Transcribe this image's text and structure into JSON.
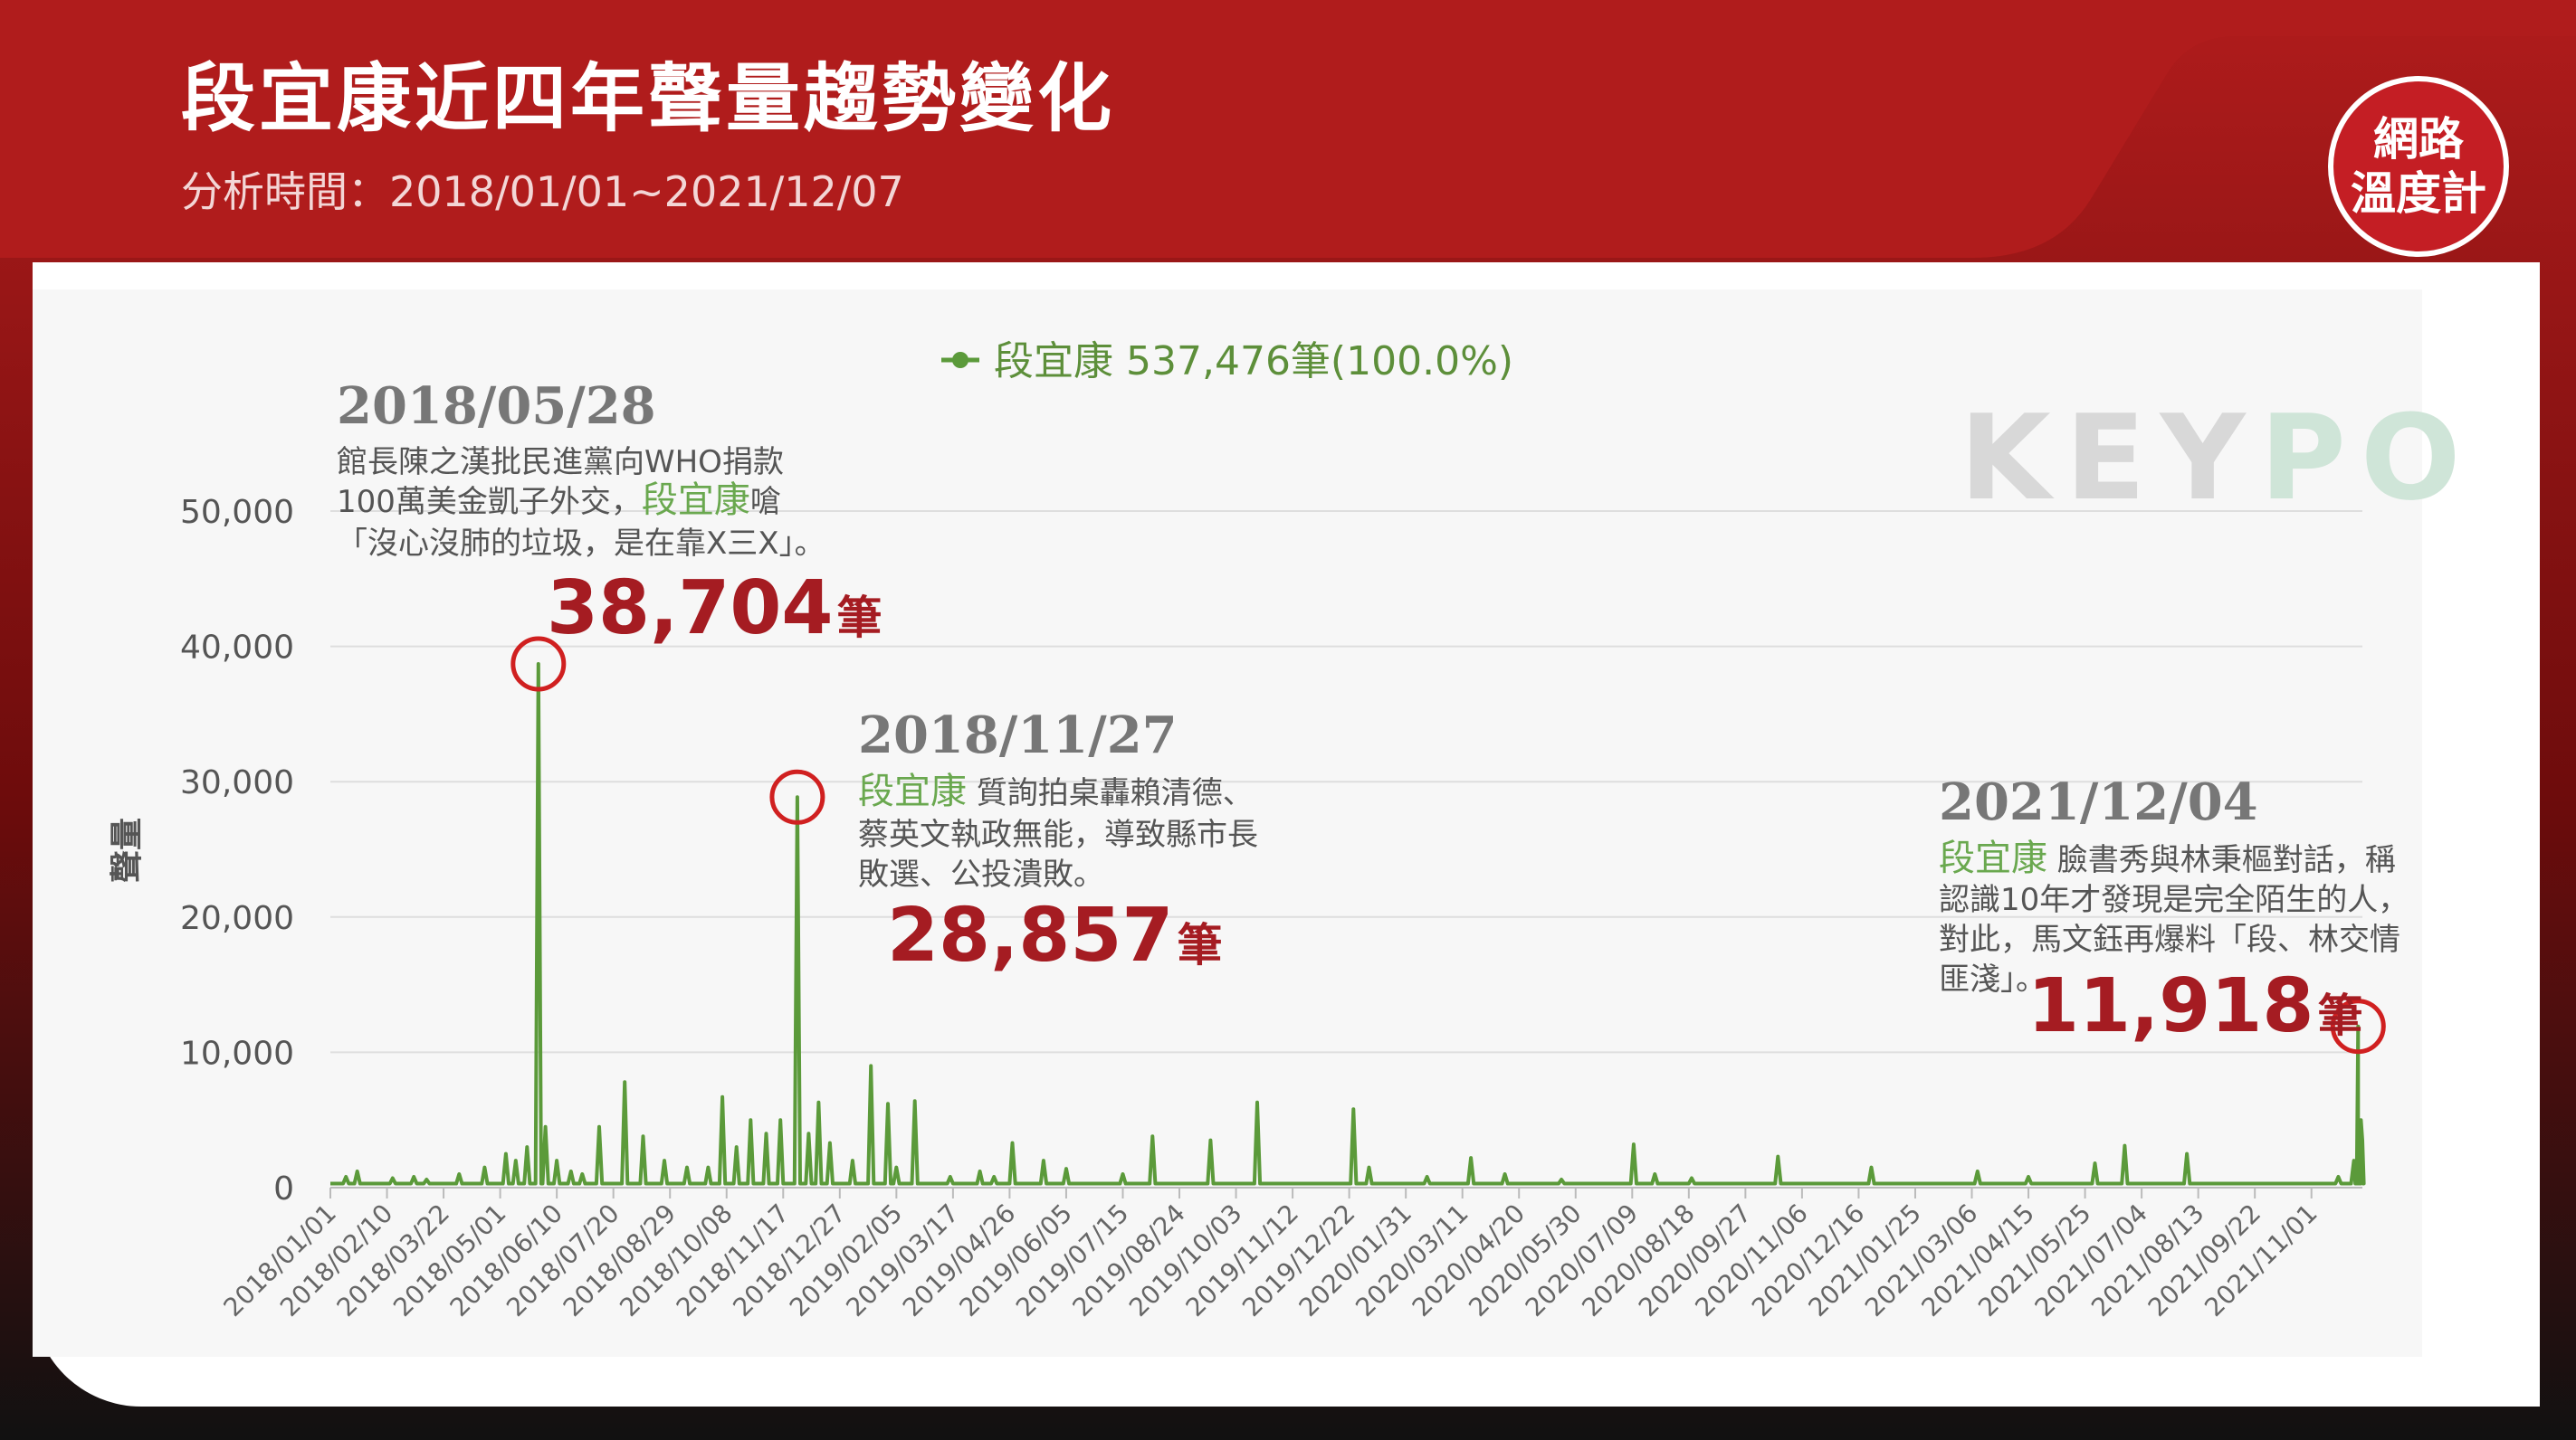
{
  "header": {
    "title": "段宜康近四年聲量趨勢變化",
    "subtitle": "分析時間：2018/01/01~2021/12/07",
    "logo_line1": "網路",
    "logo_line2": "溫度計"
  },
  "watermark": {
    "left": "KEY",
    "right": "PO"
  },
  "colors": {
    "header": "#b01c1c",
    "line": "#5b9a3a",
    "highlight": "#a51c22",
    "accent_green": "#6aa84f"
  },
  "chart_data": {
    "type": "line",
    "ylabel": "聲量",
    "ylim": [
      0,
      50000
    ],
    "y_ticks": [
      0,
      10000,
      20000,
      30000,
      40000,
      50000
    ],
    "y_tick_labels": [
      "0",
      "10,000",
      "20,000",
      "30,000",
      "40,000",
      "50,000"
    ],
    "x_range": [
      "2018-01-01",
      "2021-12-07"
    ],
    "x_tick_labels": [
      "2018/01/01",
      "2018/02/10",
      "2018/03/22",
      "2018/05/01",
      "2018/06/10",
      "2018/07/20",
      "2018/08/29",
      "2018/10/08",
      "2018/11/17",
      "2018/12/27",
      "2019/02/05",
      "2019/03/17",
      "2019/04/26",
      "2019/06/05",
      "2019/07/15",
      "2019/08/24",
      "2019/10/03",
      "2019/11/12",
      "2019/12/22",
      "2020/01/31",
      "2020/03/11",
      "2020/04/20",
      "2020/05/30",
      "2020/07/09",
      "2020/08/18",
      "2020/09/27",
      "2020/11/06",
      "2020/12/16",
      "2021/01/25",
      "2021/03/06",
      "2021/04/15",
      "2021/05/25",
      "2021/07/04",
      "2021/08/13",
      "2021/09/22",
      "2021/11/01"
    ],
    "grid": true,
    "legend": {
      "position": "top-center",
      "text": "段宜康 537,476筆(100.0%)"
    },
    "series": [
      {
        "name": "段宜康",
        "baseline": 300,
        "points": [
          [
            "2018-01-12",
            800
          ],
          [
            "2018-01-20",
            1200
          ],
          [
            "2018-02-14",
            700
          ],
          [
            "2018-03-01",
            800
          ],
          [
            "2018-03-10",
            600
          ],
          [
            "2018-04-02",
            1000
          ],
          [
            "2018-04-20",
            1500
          ],
          [
            "2018-05-05",
            2500
          ],
          [
            "2018-05-12",
            2000
          ],
          [
            "2018-05-20",
            3000
          ],
          [
            "2018-05-28",
            38704
          ],
          [
            "2018-06-02",
            4500
          ],
          [
            "2018-06-10",
            2000
          ],
          [
            "2018-06-20",
            1200
          ],
          [
            "2018-06-28",
            1000
          ],
          [
            "2018-07-10",
            4500
          ],
          [
            "2018-07-28",
            7800
          ],
          [
            "2018-08-10",
            3800
          ],
          [
            "2018-08-25",
            2000
          ],
          [
            "2018-09-10",
            1500
          ],
          [
            "2018-09-25",
            1500
          ],
          [
            "2018-10-05",
            6700
          ],
          [
            "2018-10-15",
            3000
          ],
          [
            "2018-10-25",
            5000
          ],
          [
            "2018-11-05",
            4000
          ],
          [
            "2018-11-15",
            5000
          ],
          [
            "2018-11-27",
            28857
          ],
          [
            "2018-12-05",
            4000
          ],
          [
            "2018-12-12",
            6300
          ],
          [
            "2018-12-20",
            3300
          ],
          [
            "2019-01-05",
            2000
          ],
          [
            "2019-01-18",
            9000
          ],
          [
            "2019-01-30",
            6200
          ],
          [
            "2019-02-05",
            1500
          ],
          [
            "2019-02-18",
            6400
          ],
          [
            "2019-03-15",
            800
          ],
          [
            "2019-04-05",
            1200
          ],
          [
            "2019-04-15",
            800
          ],
          [
            "2019-04-28",
            3300
          ],
          [
            "2019-05-20",
            2000
          ],
          [
            "2019-06-05",
            1400
          ],
          [
            "2019-07-15",
            1000
          ],
          [
            "2019-08-05",
            3800
          ],
          [
            "2019-09-15",
            3500
          ],
          [
            "2019-10-18",
            6300
          ],
          [
            "2019-12-25",
            5800
          ],
          [
            "2020-01-05",
            1500
          ],
          [
            "2020-02-15",
            800
          ],
          [
            "2020-03-17",
            2200
          ],
          [
            "2020-04-10",
            1000
          ],
          [
            "2020-05-20",
            600
          ],
          [
            "2020-07-10",
            3200
          ],
          [
            "2020-07-25",
            1000
          ],
          [
            "2020-08-20",
            700
          ],
          [
            "2020-10-20",
            2300
          ],
          [
            "2020-12-25",
            1500
          ],
          [
            "2021-03-10",
            1200
          ],
          [
            "2021-04-15",
            800
          ],
          [
            "2021-06-01",
            1800
          ],
          [
            "2021-06-22",
            3100
          ],
          [
            "2021-08-05",
            2500
          ],
          [
            "2021-11-20",
            800
          ],
          [
            "2021-12-01",
            2000
          ],
          [
            "2021-12-04",
            11918
          ],
          [
            "2021-12-06",
            5000
          ],
          [
            "2021-12-07",
            3500
          ]
        ]
      }
    ],
    "annotations": [
      {
        "date": "2018/05/28",
        "text_lines": [
          "館長陳之漢批民進黨向WHO捐款",
          "100萬美金凱子外交，",
          "段宜康",
          "嗆",
          "「沒心沒肺的垃圾，是在靠X三X」。"
        ],
        "value_label": "38,704",
        "unit": "筆",
        "x": "2018-05-28",
        "y": 38704
      },
      {
        "date": "2018/11/27",
        "text_lines": [
          "段宜康",
          " 質詢拍桌轟賴清德、",
          "蔡英文執政無能，導致縣市長",
          "敗選、公投潰敗。"
        ],
        "value_label": "28,857",
        "unit": "筆",
        "x": "2018-11-27",
        "y": 28857
      },
      {
        "date": "2021/12/04",
        "text_lines": [
          "段宜康",
          " 臉書秀與林秉樞對話，稱",
          "認識10年才發現是完全陌生的人，",
          "對此，馬文鈺再爆料「段、林交情",
          "匪淺」。"
        ],
        "value_label": "11,918",
        "unit": "筆",
        "x": "2021-12-04",
        "y": 11918
      }
    ]
  }
}
